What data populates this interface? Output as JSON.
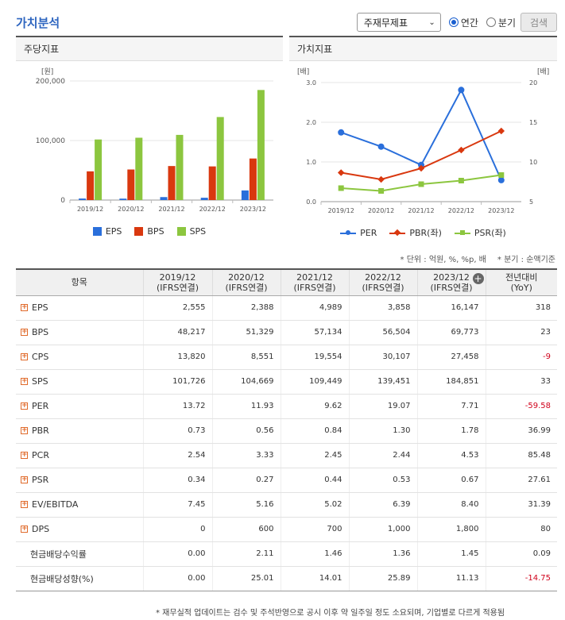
{
  "page": {
    "title": "가치분석"
  },
  "controls": {
    "select_value": "주재무제표",
    "radio_annual": "연간",
    "radio_quarter": "분기",
    "search_label": "검색"
  },
  "panels": {
    "left_title": "주당지표",
    "right_title": "가치지표"
  },
  "chart_data": [
    {
      "type": "bar",
      "title": "주당지표",
      "ylabel": "[원]",
      "categories": [
        "2019/12",
        "2020/12",
        "2021/12",
        "2022/12",
        "2023/12"
      ],
      "ylim": [
        0,
        200000
      ],
      "yticks": [
        "0",
        "100,000",
        "200,000"
      ],
      "grid": true,
      "legend": "bottom",
      "series": [
        {
          "name": "EPS",
          "color": "#2a6fdb",
          "values": [
            2555,
            2388,
            4989,
            3858,
            16147
          ]
        },
        {
          "name": "BPS",
          "color": "#d9380f",
          "values": [
            48217,
            51329,
            57134,
            56504,
            69773
          ]
        },
        {
          "name": "SPS",
          "color": "#8cc63f",
          "values": [
            101726,
            104669,
            109449,
            139451,
            184851
          ]
        }
      ]
    },
    {
      "type": "line",
      "title": "가치지표",
      "ylabel_left": "[배]",
      "ylabel_right": "[배]",
      "categories": [
        "2019/12",
        "2020/12",
        "2021/12",
        "2022/12",
        "2023/12"
      ],
      "ylim_left": [
        0,
        3
      ],
      "yticks_left": [
        "0.0",
        "1.0",
        "2.0",
        "3.0"
      ],
      "ylim_right": [
        5,
        20
      ],
      "yticks_right": [
        "5",
        "10",
        "15",
        "20"
      ],
      "grid": true,
      "legend": "bottom",
      "series": [
        {
          "name": "PER",
          "axis": "right",
          "color": "#2a6fdb",
          "marker": "circle",
          "values": [
            13.72,
            11.93,
            9.62,
            19.07,
            7.71
          ]
        },
        {
          "name": "PBR(좌)",
          "axis": "left",
          "color": "#d9380f",
          "marker": "diamond",
          "values": [
            0.73,
            0.56,
            0.84,
            1.3,
            1.78
          ]
        },
        {
          "name": "PSR(좌)",
          "axis": "left",
          "color": "#8cc63f",
          "marker": "square",
          "values": [
            0.34,
            0.27,
            0.44,
            0.53,
            0.67
          ]
        }
      ]
    }
  ],
  "notes": {
    "unit": "* 단위 : 억원, %, %p, 배",
    "quarter": "* 분기 : 순액기준"
  },
  "table": {
    "headers": [
      {
        "line1": "항목",
        "line2": ""
      },
      {
        "line1": "2019/12",
        "line2": "(IFRS연결)"
      },
      {
        "line1": "2020/12",
        "line2": "(IFRS연결)"
      },
      {
        "line1": "2021/12",
        "line2": "(IFRS연결)"
      },
      {
        "line1": "2022/12",
        "line2": "(IFRS연결)"
      },
      {
        "line1": "2023/12",
        "line2": "(IFRS연결)"
      },
      {
        "line1": "전년대비",
        "line2": "(YoY)"
      }
    ],
    "rows": [
      {
        "label": "EPS",
        "expandable": true,
        "values": [
          "2,555",
          "2,388",
          "4,989",
          "3,858",
          "16,147"
        ],
        "yoy": "318",
        "yoy_negative": false
      },
      {
        "label": "BPS",
        "expandable": true,
        "values": [
          "48,217",
          "51,329",
          "57,134",
          "56,504",
          "69,773"
        ],
        "yoy": "23",
        "yoy_negative": false
      },
      {
        "label": "CPS",
        "expandable": true,
        "values": [
          "13,820",
          "8,551",
          "19,554",
          "30,107",
          "27,458"
        ],
        "yoy": "-9",
        "yoy_negative": true
      },
      {
        "label": "SPS",
        "expandable": true,
        "values": [
          "101,726",
          "104,669",
          "109,449",
          "139,451",
          "184,851"
        ],
        "yoy": "33",
        "yoy_negative": false
      },
      {
        "label": "PER",
        "expandable": true,
        "values": [
          "13.72",
          "11.93",
          "9.62",
          "19.07",
          "7.71"
        ],
        "yoy": "-59.58",
        "yoy_negative": true
      },
      {
        "label": "PBR",
        "expandable": true,
        "values": [
          "0.73",
          "0.56",
          "0.84",
          "1.30",
          "1.78"
        ],
        "yoy": "36.99",
        "yoy_negative": false
      },
      {
        "label": "PCR",
        "expandable": true,
        "values": [
          "2.54",
          "3.33",
          "2.45",
          "2.44",
          "4.53"
        ],
        "yoy": "85.48",
        "yoy_negative": false
      },
      {
        "label": "PSR",
        "expandable": true,
        "values": [
          "0.34",
          "0.27",
          "0.44",
          "0.53",
          "0.67"
        ],
        "yoy": "27.61",
        "yoy_negative": false
      },
      {
        "label": "EV/EBITDA",
        "expandable": true,
        "values": [
          "7.45",
          "5.16",
          "5.02",
          "6.39",
          "8.40"
        ],
        "yoy": "31.39",
        "yoy_negative": false
      },
      {
        "label": "DPS",
        "expandable": true,
        "values": [
          "0",
          "600",
          "700",
          "1,000",
          "1,800"
        ],
        "yoy": "80",
        "yoy_negative": false
      },
      {
        "label": "현금배당수익률",
        "expandable": false,
        "values": [
          "0.00",
          "2.11",
          "1.46",
          "1.36",
          "1.45"
        ],
        "yoy": "0.09",
        "yoy_negative": false
      },
      {
        "label": "현금배당성향(%)",
        "expandable": false,
        "values": [
          "0.00",
          "25.01",
          "14.01",
          "25.89",
          "11.13"
        ],
        "yoy": "-14.75",
        "yoy_negative": true
      }
    ]
  },
  "footnote": "* 재무실적 업데이트는 검수 및 주석반영으로 공시 이후 약 일주일 정도 소요되며, 기업별로 다르게 적용됨"
}
